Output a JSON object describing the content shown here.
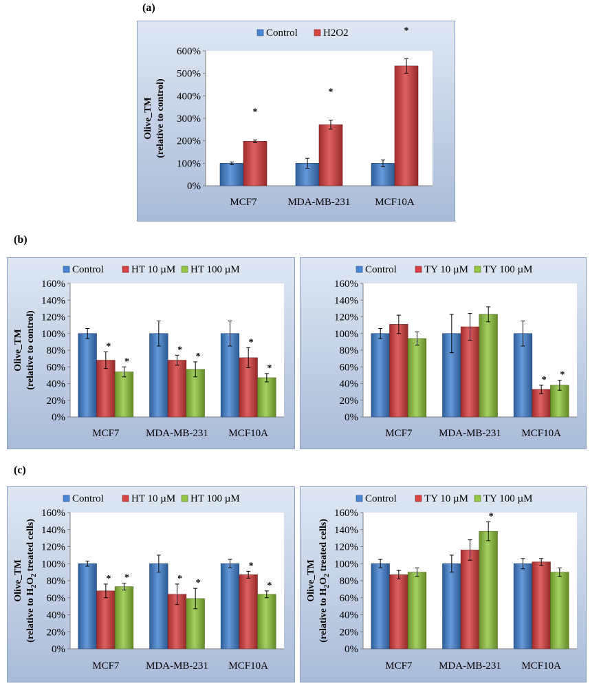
{
  "panel_labels": [
    "(a)",
    "(b)",
    "(c)"
  ],
  "colors": {
    "Control": "#3f7fd0",
    "H2O2": "#d63a3a",
    "HT 10 µM": "#d63a3a",
    "HT 100 µM": "#8fc43a",
    "TY 10 µM": "#d63a3a",
    "TY 100 µM": "#8fc43a"
  },
  "chart_data": [
    {
      "id": "a",
      "type": "bar",
      "title": "",
      "categories": [
        "MCF7",
        "MDA-MB-231",
        "MCF10A"
      ],
      "series": [
        {
          "name": "Control",
          "values": [
            100,
            100,
            100
          ],
          "errors": [
            6,
            22,
            15
          ],
          "stars": [
            false,
            false,
            false
          ]
        },
        {
          "name": "H2O2",
          "values": [
            198,
            272,
            533
          ],
          "errors": [
            6,
            20,
            32
          ],
          "stars": [
            true,
            true,
            true
          ]
        }
      ],
      "ylim": [
        0,
        600
      ],
      "yticks": [
        0,
        100,
        200,
        300,
        400,
        500,
        600
      ],
      "yunit": "%",
      "ylabel": [
        "Olive_TM",
        "(relative to control)"
      ],
      "xlabel": "",
      "legend": "top"
    },
    {
      "id": "b-left",
      "type": "bar",
      "title": "",
      "categories": [
        "MCF7",
        "MDA-MB-231",
        "MCF10A"
      ],
      "series": [
        {
          "name": "Control",
          "values": [
            100,
            100,
            100
          ],
          "errors": [
            6,
            15,
            15
          ],
          "stars": [
            false,
            false,
            false
          ]
        },
        {
          "name": "HT 10 µM",
          "values": [
            68,
            68,
            71
          ],
          "errors": [
            10,
            6,
            12
          ],
          "stars": [
            true,
            true,
            true
          ]
        },
        {
          "name": "HT 100 µM",
          "values": [
            54,
            57,
            47
          ],
          "errors": [
            6,
            9,
            5
          ],
          "stars": [
            true,
            true,
            true
          ]
        }
      ],
      "ylim": [
        0,
        160
      ],
      "yticks": [
        0,
        20,
        40,
        60,
        80,
        100,
        120,
        140,
        160
      ],
      "yunit": "%",
      "ylabel": [
        "Olive_TM",
        "(relative to control)"
      ],
      "xlabel": "",
      "legend": "top"
    },
    {
      "id": "b-right",
      "type": "bar",
      "title": "",
      "categories": [
        "MCF7",
        "MDA-MB-231",
        "MCF10A"
      ],
      "series": [
        {
          "name": "Control",
          "values": [
            100,
            100,
            100
          ],
          "errors": [
            6,
            23,
            15
          ],
          "stars": [
            false,
            false,
            false
          ]
        },
        {
          "name": "TY 10 µM",
          "values": [
            111,
            108,
            33
          ],
          "errors": [
            11,
            16,
            5
          ],
          "stars": [
            false,
            false,
            true
          ]
        },
        {
          "name": "TY 100 µM",
          "values": [
            94,
            123,
            38
          ],
          "errors": [
            8,
            9,
            6
          ],
          "stars": [
            false,
            false,
            true
          ]
        }
      ],
      "ylim": [
        0,
        160
      ],
      "yticks": [
        0,
        20,
        40,
        60,
        80,
        100,
        120,
        140,
        160
      ],
      "yunit": "%",
      "ylabel": [],
      "xlabel": "",
      "legend": "top"
    },
    {
      "id": "c-left",
      "type": "bar",
      "title": "",
      "categories": [
        "MCF7",
        "MDA-MB-231",
        "MCF10A"
      ],
      "series": [
        {
          "name": "Control",
          "values": [
            100,
            100,
            100
          ],
          "errors": [
            3,
            10,
            5
          ],
          "stars": [
            false,
            false,
            false
          ]
        },
        {
          "name": "HT 10 µM",
          "values": [
            68,
            64,
            87
          ],
          "errors": [
            8,
            12,
            4
          ],
          "stars": [
            true,
            true,
            true
          ]
        },
        {
          "name": "HT 100 µM",
          "values": [
            73,
            59,
            64
          ],
          "errors": [
            4,
            12,
            4
          ],
          "stars": [
            true,
            true,
            true
          ]
        }
      ],
      "ylim": [
        0,
        160
      ],
      "yticks": [
        0,
        20,
        40,
        60,
        80,
        100,
        120,
        140,
        160
      ],
      "yunit": "%",
      "ylabel": [
        "Olive_TM",
        "(relative to H",
        "2",
        "O",
        "2",
        " treated cells)"
      ],
      "xlabel": "",
      "legend": "top"
    },
    {
      "id": "c-right",
      "type": "bar",
      "title": "",
      "categories": [
        "MCF7",
        "MDA-MB-231",
        "MCF10A"
      ],
      "series": [
        {
          "name": "Control",
          "values": [
            100,
            100,
            100
          ],
          "errors": [
            5,
            10,
            6
          ],
          "stars": [
            false,
            false,
            false
          ]
        },
        {
          "name": "TY 10 µM",
          "values": [
            87,
            116,
            102
          ],
          "errors": [
            5,
            12,
            4
          ],
          "stars": [
            false,
            false,
            false
          ]
        },
        {
          "name": "TY 100 µM",
          "values": [
            90,
            138,
            90
          ],
          "errors": [
            5,
            11,
            5
          ],
          "stars": [
            false,
            true,
            false
          ]
        }
      ],
      "ylim": [
        0,
        160
      ],
      "yticks": [
        0,
        20,
        40,
        60,
        80,
        100,
        120,
        140,
        160
      ],
      "yunit": "%",
      "ylabel": [
        "Olive_TM",
        "(relative to H",
        "2",
        "O",
        "2",
        " treated cells)"
      ],
      "xlabel": "",
      "legend": "top"
    }
  ]
}
